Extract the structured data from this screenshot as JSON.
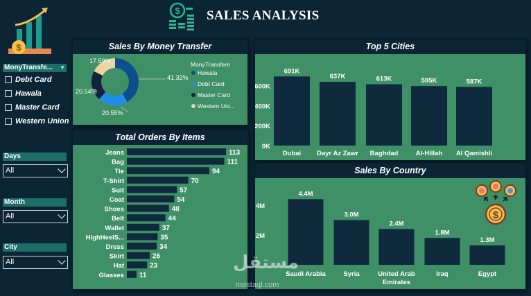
{
  "header": {
    "title": "SALES ANALYSIS"
  },
  "slicers": {
    "money_transfer": {
      "label": "MonyTransfe...",
      "options": [
        "Debt Card",
        "Hawala",
        "Master Card",
        "Western Union"
      ]
    },
    "days": {
      "label": "Days",
      "value": "All"
    },
    "month": {
      "label": "Month",
      "value": "All"
    },
    "city": {
      "label": "City",
      "value": "All"
    }
  },
  "watermark": {
    "brand": "مستقل",
    "url": "mostaql.com"
  },
  "colors": {
    "background": "#0b2535",
    "panel": "#3f8f67",
    "bar": "#0e2a3c",
    "hawala": "#0d4f8b",
    "debt_card": "#1f8ee8",
    "master_card": "#13233d",
    "western_union": "#ecd59e"
  },
  "icons": [
    "growth-chart-icon",
    "money-stack-icon",
    "dollar-coin-icon"
  ],
  "chart_data": [
    {
      "type": "pie",
      "title": "Sales By Money Transfer",
      "legend_title": "MonyTransfere",
      "legend_position": "right",
      "labels": [
        "Hawala",
        "Debt Card",
        "Master Card",
        "Western Uni..."
      ],
      "values": [
        41.32,
        20.55,
        20.54,
        17.59
      ],
      "value_labels": [
        "41.32%",
        "20.55%",
        "20.54%",
        "17.59%"
      ],
      "colors": [
        "#0d4f8b",
        "#1f8ee8",
        "#13233d",
        "#ecd59e"
      ]
    },
    {
      "type": "bar",
      "title": "Top 5 Cities",
      "categories": [
        "Dubai",
        "Dayr Az Zawr",
        "Baghdad",
        "Al-Hillah",
        "Al Qamishli"
      ],
      "values": [
        691,
        637,
        613,
        595,
        587
      ],
      "value_labels": [
        "691K",
        "637K",
        "613K",
        "595K",
        "587K"
      ],
      "yticks": [
        "0K",
        "200K",
        "400K",
        "600K"
      ],
      "ylim": [
        0,
        700
      ],
      "grid": false
    },
    {
      "type": "bar",
      "orientation": "horizontal",
      "title": "Total Orders By Items",
      "categories": [
        "Jeans",
        "Bag",
        "Tie",
        "T-Shirt",
        "Suit",
        "Coat",
        "Shoes",
        "Belt",
        "Wallet",
        "HighHeelS...",
        "Dress",
        "Skirt",
        "Hat",
        "Glasses"
      ],
      "values": [
        113,
        111,
        94,
        70,
        57,
        54,
        48,
        44,
        37,
        35,
        34,
        26,
        23,
        11
      ]
    },
    {
      "type": "bar",
      "title": "Sales By Country",
      "categories": [
        "Saudi Arabia",
        "Syria",
        "United Arab Emirates",
        "Iraq",
        "Egypt"
      ],
      "values": [
        4.4,
        3.0,
        2.4,
        1.8,
        1.3
      ],
      "value_labels": [
        "4.4M",
        "3.0M",
        "2.4M",
        "1.8M",
        "1.3M"
      ],
      "yticks": [
        "2M",
        "4M"
      ],
      "ylim": [
        0,
        4.6
      ],
      "grid": false
    }
  ]
}
